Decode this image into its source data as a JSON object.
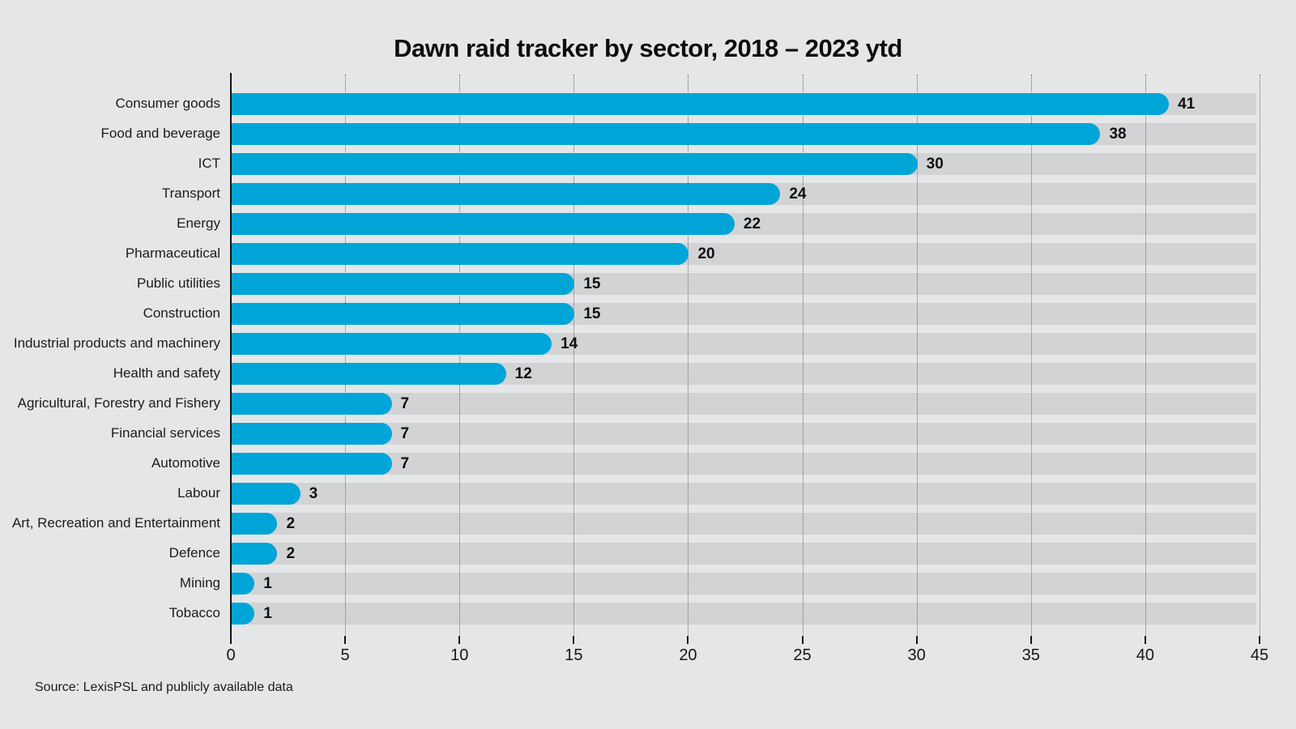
{
  "chart_data": {
    "type": "bar",
    "orientation": "horizontal",
    "title": "Dawn raid tracker by sector, 2018 – 2023 ytd",
    "categories": [
      "Consumer goods",
      "Food and beverage",
      "ICT",
      "Transport",
      "Energy",
      "Pharmaceutical",
      "Public utilities",
      "Construction",
      "Industrial products and machinery",
      "Health and safety",
      "Agricultural, Forestry and Fishery",
      "Financial services",
      "Automotive",
      "Labour",
      "Art, Recreation and Entertainment",
      "Defence",
      "Mining",
      "Tobacco"
    ],
    "values": [
      41,
      38,
      30,
      24,
      22,
      20,
      15,
      15,
      14,
      12,
      7,
      7,
      7,
      3,
      2,
      2,
      1,
      1
    ],
    "xlabel": "",
    "ylabel": "",
    "xlim": [
      0,
      45
    ],
    "x_ticks": [
      0,
      5,
      10,
      15,
      20,
      25,
      30,
      35,
      40,
      45
    ],
    "grid": "vertical-dotted",
    "legend": "none",
    "value_labels": true,
    "bar_color": "#00a5d8",
    "track_color": "#d2d3d5",
    "background_color": "#e5e6e8"
  },
  "source": "Source: LexisPSL and publicly available data"
}
